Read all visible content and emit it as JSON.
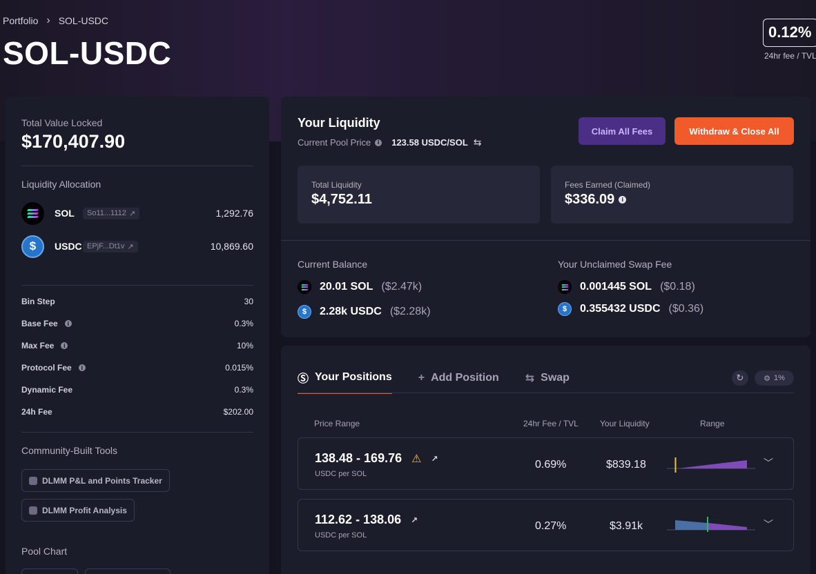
{
  "breadcrumb": {
    "root": "Portfolio",
    "separator": "›",
    "current": "SOL-USDC"
  },
  "page_title": "SOL-USDC",
  "fee_tvl": {
    "value": "0.12%",
    "caption": "24hr fee / TVL"
  },
  "overview": {
    "tvl_label": "Total Value Locked",
    "tvl_value": "$170,407.90",
    "allocation_title": "Liquidity Allocation",
    "tokens": [
      {
        "symbol": "SOL",
        "address": "So11...1112",
        "amount": "1,292.76",
        "icon": "solana-icon"
      },
      {
        "symbol": "USDC",
        "address": "EPjF...Dt1v",
        "amount": "10,869.60",
        "icon": "usdc-icon"
      }
    ],
    "stats": [
      {
        "label": "Bin Step",
        "value": "30",
        "info": false
      },
      {
        "label": "Base Fee",
        "value": "0.3%",
        "info": true
      },
      {
        "label": "Max Fee",
        "value": "10%",
        "info": true
      },
      {
        "label": "Protocol Fee",
        "value": "0.015%",
        "info": true
      },
      {
        "label": "Dynamic Fee",
        "value": "0.3%",
        "info": false
      },
      {
        "label": "24h Fee",
        "value": "$202.00",
        "info": false
      }
    ],
    "tools_title": "Community-Built Tools",
    "tools": [
      "DLMM P&L and Points Tracker",
      "DLMM Profit Analysis"
    ],
    "pool_chart_title": "Pool Chart"
  },
  "liquidity": {
    "title": "Your Liquidity",
    "pool_price_label": "Current Pool Price",
    "pool_price_value": "123.58 USDC/SOL",
    "claim_label": "Claim All Fees",
    "withdraw_label": "Withdraw & Close All",
    "total_label": "Total Liquidity",
    "total_value": "$4,752.11",
    "fees_label": "Fees Earned (Claimed)",
    "fees_value": "$336.09",
    "balance_title": "Current Balance",
    "balance": [
      {
        "amount": "20.01 SOL",
        "usd": "($2.47k)"
      },
      {
        "amount": "2.28k USDC",
        "usd": "($2.28k)"
      }
    ],
    "unclaimed_title": "Your Unclaimed Swap Fee",
    "unclaimed": [
      {
        "amount": "0.001445 SOL",
        "usd": "($0.18)"
      },
      {
        "amount": "0.355432 USDC",
        "usd": "($0.36)"
      }
    ]
  },
  "positions": {
    "tabs": [
      {
        "label": "Your Positions",
        "icon": "dollar-circle-icon",
        "active": true
      },
      {
        "label": "Add Position",
        "icon": "plus-icon",
        "active": false
      },
      {
        "label": "Swap",
        "icon": "swap-arrows-icon",
        "active": false
      }
    ],
    "slippage": "1%",
    "columns": {
      "price_range": "Price Range",
      "fee_tvl": "24hr Fee / TVL",
      "liquidity": "Your Liquidity",
      "range": "Range"
    },
    "rows": [
      {
        "range": "138.48 - 169.76",
        "unit": "USDC per SOL",
        "fee_tvl": "0.69%",
        "liquidity": "$839.18",
        "warning": true,
        "current_price_marker": 0.1
      },
      {
        "range": "112.62 - 138.06",
        "unit": "USDC per SOL",
        "fee_tvl": "0.27%",
        "liquidity": "$3.91k",
        "warning": false,
        "current_price_marker": 0.45
      }
    ]
  },
  "colors": {
    "accent_orange": "#f15a2b",
    "accent_purple": "#4b2f86",
    "panel": "#1c1d2b"
  }
}
